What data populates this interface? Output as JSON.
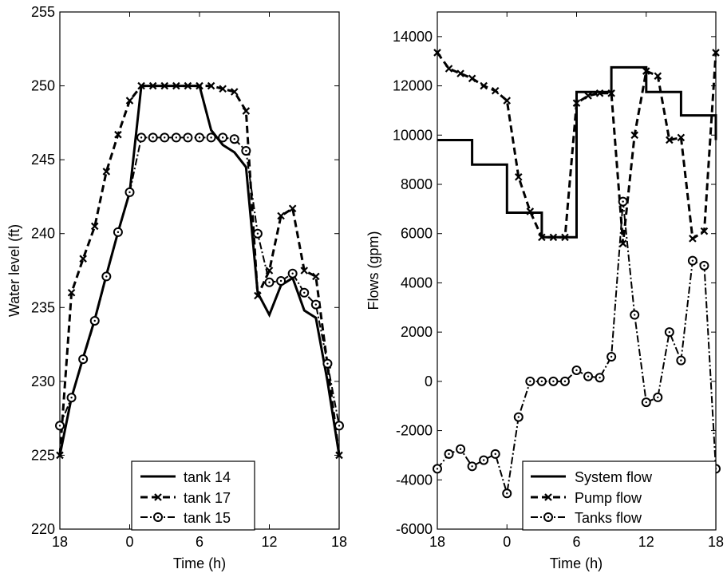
{
  "chart_data": [
    {
      "type": "line",
      "xlabel": "Time (h)",
      "ylabel": "Water level (ft)",
      "ylim": [
        220,
        255
      ],
      "yticks": [
        220,
        225,
        230,
        235,
        240,
        245,
        250,
        255
      ],
      "xtick_labels": [
        "18",
        "0",
        "6",
        "12",
        "18"
      ],
      "x_hours_elapsed": [
        0,
        1,
        2,
        3,
        4,
        5,
        6,
        7,
        8,
        9,
        10,
        11,
        12,
        13,
        14,
        15,
        16,
        17,
        18,
        19,
        20,
        21,
        22,
        23,
        24
      ],
      "legend_position": "bottom-center",
      "series": [
        {
          "name": "tank 14",
          "style": "solid",
          "marker": "none",
          "values": [
            225,
            228.9,
            231.6,
            234.2,
            237.2,
            240.1,
            242.8,
            250,
            250,
            250,
            250,
            250,
            250,
            247,
            246,
            245.5,
            244.5,
            236,
            234.5,
            236.5,
            237,
            234.8,
            234.3,
            230,
            225
          ]
        },
        {
          "name": "tank 17",
          "style": "dashed",
          "marker": "x",
          "values": [
            225,
            236,
            238.3,
            240.5,
            244.2,
            246.7,
            249,
            250,
            250,
            250,
            250,
            250,
            250,
            250,
            249.8,
            249.6,
            248.3,
            235.8,
            237.5,
            241.2,
            241.7,
            237.5,
            237.1,
            231.1,
            225
          ]
        },
        {
          "name": "tank 15",
          "style": "dashdot",
          "marker": "o",
          "values": [
            227,
            228.9,
            231.5,
            234.1,
            237.1,
            240.1,
            242.8,
            246.5,
            246.5,
            246.5,
            246.5,
            246.5,
            246.5,
            246.5,
            246.5,
            246.4,
            245.6,
            240,
            236.7,
            236.8,
            237.3,
            236,
            235.2,
            231.2,
            227
          ]
        }
      ]
    },
    {
      "type": "line",
      "xlabel": "Time (h)",
      "ylabel": "Flows (gpm)",
      "ylim": [
        -6000,
        15000
      ],
      "yticks": [
        -6000,
        -4000,
        -2000,
        0,
        2000,
        4000,
        6000,
        8000,
        10000,
        12000,
        14000
      ],
      "xtick_labels": [
        "18",
        "0",
        "6",
        "12",
        "18"
      ],
      "x_hours_elapsed": [
        0,
        1,
        2,
        3,
        4,
        5,
        6,
        7,
        8,
        9,
        10,
        11,
        12,
        13,
        14,
        15,
        16,
        17,
        18,
        19,
        20,
        21,
        22,
        23,
        24
      ],
      "legend_position": "bottom-right",
      "series": [
        {
          "name": "System flow",
          "style": "solid",
          "marker": "none",
          "step": true,
          "values": [
            9800,
            9800,
            9800,
            8800,
            8800,
            8800,
            6850,
            6850,
            6850,
            5850,
            5850,
            5850,
            11750,
            11750,
            11750,
            12750,
            12750,
            12750,
            11750,
            11750,
            11750,
            10800,
            10800,
            10800,
            9800
          ]
        },
        {
          "name": "Pump flow",
          "style": "dashed",
          "marker": "x",
          "values": [
            13350,
            12700,
            12500,
            12300,
            12000,
            11800,
            11400,
            8300,
            6900,
            5850,
            5850,
            5850,
            11300,
            11600,
            11700,
            11700,
            5600,
            10000,
            12600,
            12400,
            9800,
            9900,
            5800,
            6100,
            13350
          ]
        },
        {
          "name": "Tanks flow",
          "style": "dashdot",
          "marker": "o",
          "values": [
            -3550,
            -2950,
            -2750,
            -3450,
            -3200,
            -2950,
            -4550,
            -1450,
            0,
            0,
            0,
            0,
            450,
            200,
            150,
            1000,
            7300,
            2700,
            -850,
            -650,
            2000,
            850,
            4900,
            4700,
            -3550
          ]
        }
      ]
    }
  ]
}
